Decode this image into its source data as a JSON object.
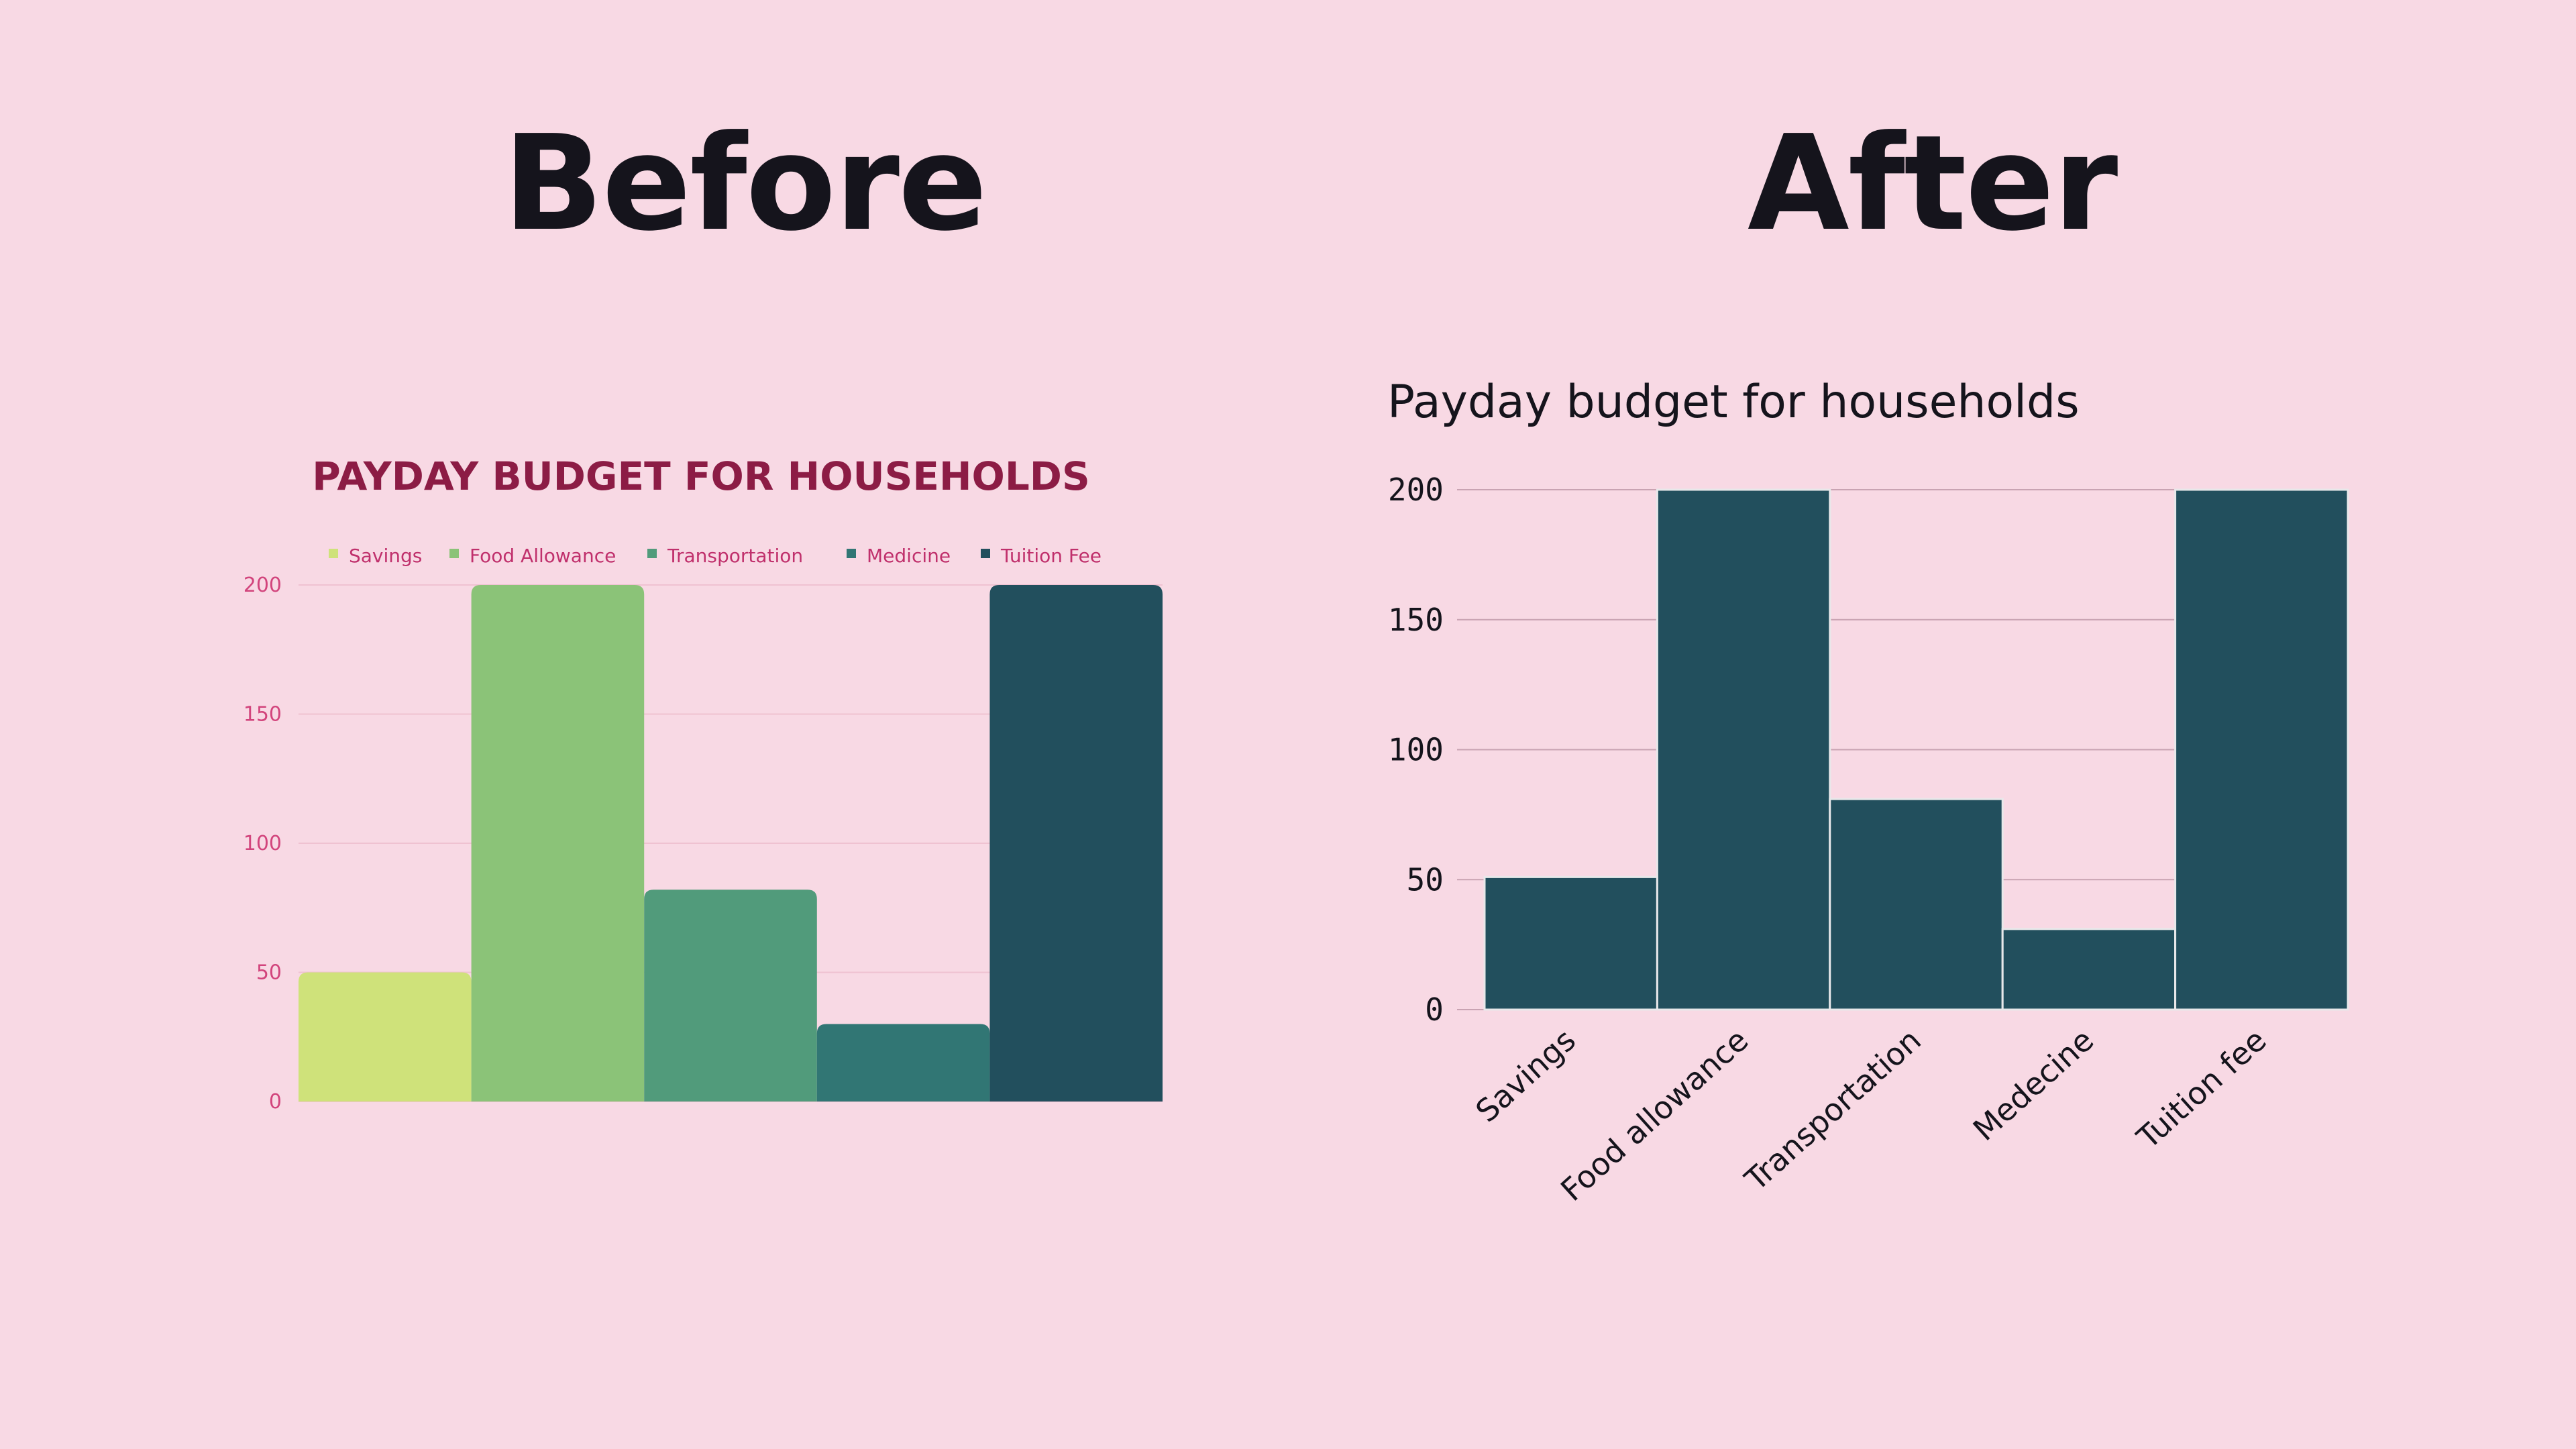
{
  "headings": {
    "before": "Before",
    "after": "After"
  },
  "colors": {
    "background": "#f8d9e4",
    "heading_text": "#15141c",
    "before_title": "#8c1c45",
    "before_axis_text": "#d2447c",
    "before_grid": "#efc2d1",
    "after_bar": "#224f5d",
    "after_grid": "#c9a3b2"
  },
  "chart_data": [
    {
      "type": "bar",
      "title": "PAYDAY BUDGET FOR HOUSEHOLDS",
      "legend_position": "top",
      "legend": [
        "Savings",
        "Food Allowance",
        "Transportation",
        "Medicine",
        "Tuition Fee"
      ],
      "series": [
        {
          "name": "Savings",
          "values": [
            50
          ],
          "color": "#cfe27a"
        },
        {
          "name": "Food Allowance",
          "values": [
            200
          ],
          "color": "#8bc378"
        },
        {
          "name": "Transportation",
          "values": [
            82
          ],
          "color": "#519b7b"
        },
        {
          "name": "Medicine",
          "values": [
            30
          ],
          "color": "#317674"
        },
        {
          "name": "Tuition Fee",
          "values": [
            200
          ],
          "color": "#224f5d"
        }
      ],
      "yticks": [
        "0",
        "50",
        "100",
        "150",
        "200"
      ],
      "ylim": [
        0,
        200
      ],
      "grid": true
    },
    {
      "type": "bar",
      "title": "Payday budget for households",
      "categories": [
        "Savings",
        "Food allowance",
        "Transportation",
        "Medecine",
        "Tuition fee"
      ],
      "values": [
        51,
        200,
        81,
        31,
        200
      ],
      "yticks": [
        "0",
        "50",
        "100",
        "150",
        "200"
      ],
      "ylim": [
        0,
        200
      ],
      "grid": true
    }
  ]
}
